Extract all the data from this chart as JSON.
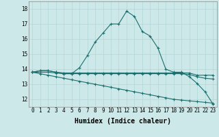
{
  "xlabel": "Humidex (Indice chaleur)",
  "background_color": "#cce8e8",
  "grid_color": "#b0d8d8",
  "line_color": "#1a6e6e",
  "xlim": [
    -0.5,
    23.5
  ],
  "ylim": [
    11.5,
    18.5
  ],
  "yticks": [
    12,
    13,
    14,
    15,
    16,
    17,
    18
  ],
  "xticks": [
    0,
    1,
    2,
    3,
    4,
    5,
    6,
    7,
    8,
    9,
    10,
    11,
    12,
    13,
    14,
    15,
    16,
    17,
    18,
    19,
    20,
    21,
    22,
    23
  ],
  "series": [
    [
      13.8,
      13.9,
      13.9,
      13.8,
      13.7,
      13.7,
      14.1,
      14.9,
      15.8,
      16.4,
      17.0,
      17.0,
      17.85,
      17.5,
      16.5,
      16.2,
      15.4,
      14.0,
      13.8,
      13.8,
      13.5,
      13.05,
      12.5,
      11.7
    ],
    [
      13.8,
      13.9,
      13.9,
      13.8,
      13.75,
      13.75,
      13.75,
      13.75,
      13.75,
      13.75,
      13.75,
      13.75,
      13.75,
      13.75,
      13.75,
      13.75,
      13.75,
      13.75,
      13.75,
      13.75,
      13.75,
      13.6,
      13.6,
      13.6
    ],
    [
      13.8,
      13.8,
      13.8,
      13.75,
      13.7,
      13.7,
      13.7,
      13.7,
      13.7,
      13.7,
      13.7,
      13.7,
      13.7,
      13.7,
      13.7,
      13.7,
      13.7,
      13.7,
      13.7,
      13.7,
      13.65,
      13.5,
      13.4,
      13.35
    ],
    [
      13.8,
      13.7,
      13.6,
      13.5,
      13.4,
      13.3,
      13.2,
      13.1,
      13.0,
      12.9,
      12.8,
      12.7,
      12.6,
      12.5,
      12.4,
      12.3,
      12.2,
      12.1,
      12.0,
      11.95,
      11.9,
      11.85,
      11.8,
      11.75
    ]
  ],
  "xlabel_fontsize": 7,
  "tick_fontsize": 5.5
}
